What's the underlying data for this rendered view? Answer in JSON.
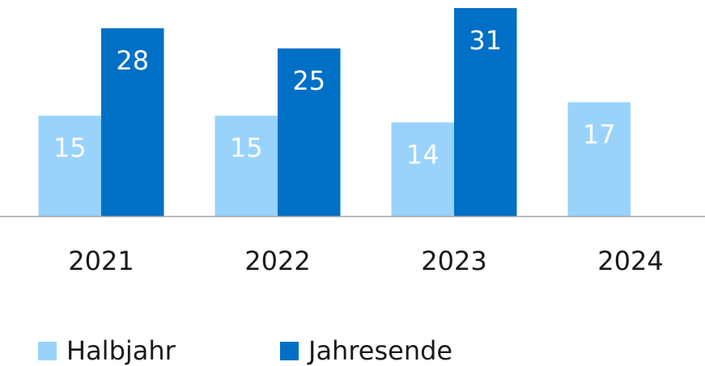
{
  "chart_data": {
    "type": "bar",
    "categories": [
      "2021",
      "2022",
      "2023",
      "2024"
    ],
    "series": [
      {
        "name": "Halbjahr",
        "color": "#99d3fb",
        "values": [
          15,
          15,
          14,
          17
        ]
      },
      {
        "name": "Jahresende",
        "color": "#0070c6",
        "values": [
          28,
          25,
          31,
          null
        ]
      }
    ],
    "ylim": [
      0,
      31
    ]
  }
}
